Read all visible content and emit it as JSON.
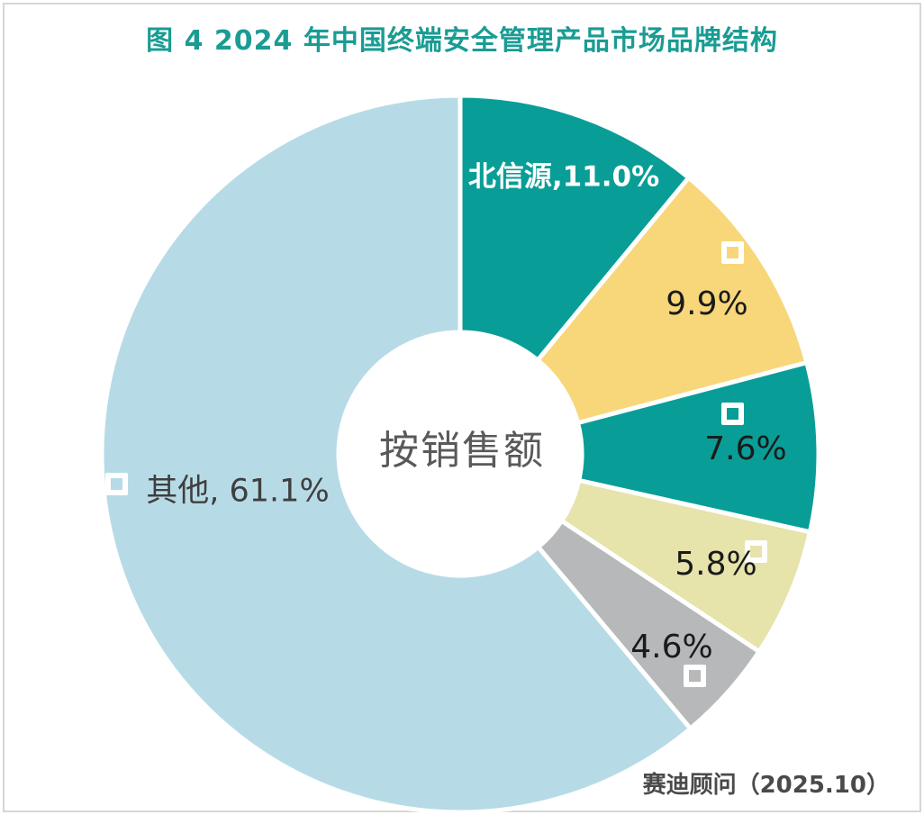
{
  "page": {
    "title": "图 4  2024 年中国终端安全管理产品市场品牌结构",
    "source": "赛迪顾问（2025.10）"
  },
  "icons": {
    "logo_placeholder_marker": "hollow-white-square"
  },
  "colors": {
    "title_text": "#1A9C94",
    "center_label_text": "#595959",
    "percent_label_text": "#1A1A1A",
    "other_label_text": "#3F3F3F",
    "brand_label_text": "#FFFFFF",
    "source_text": "#4A4A4A",
    "slice_border": "#FFFFFF",
    "page_frame": "#D6D6D6"
  },
  "chart_data": {
    "type": "pie",
    "subtype": "donut",
    "title": "图 4  2024 年中国终端安全管理产品市场品牌结构",
    "center_label": "按销售额",
    "source": "赛迪顾问（2025.10）",
    "unit": "%",
    "start_angle_deg": 0,
    "direction": "clockwise",
    "legend_position": "none",
    "inner_radius_ratio": 0.34,
    "slices": [
      {
        "label": "北信源",
        "value": 11.0,
        "display": "北信源,11.0%",
        "color": "#089E97",
        "logo_marker": false
      },
      {
        "label": "",
        "value": 9.9,
        "display": "9.9%",
        "color": "#F8D77A",
        "logo_marker": true
      },
      {
        "label": "",
        "value": 7.6,
        "display": "7.6%",
        "color": "#089E97",
        "logo_marker": true
      },
      {
        "label": "",
        "value": 5.8,
        "display": "5.8%",
        "color": "#E6E3AB",
        "logo_marker": true
      },
      {
        "label": "",
        "value": 4.6,
        "display": "4.6%",
        "color": "#B6B8B9",
        "logo_marker": true
      },
      {
        "label": "其他",
        "value": 61.1,
        "display": "其他, 61.1%",
        "color": "#B7DBE6",
        "logo_marker": true
      }
    ]
  }
}
